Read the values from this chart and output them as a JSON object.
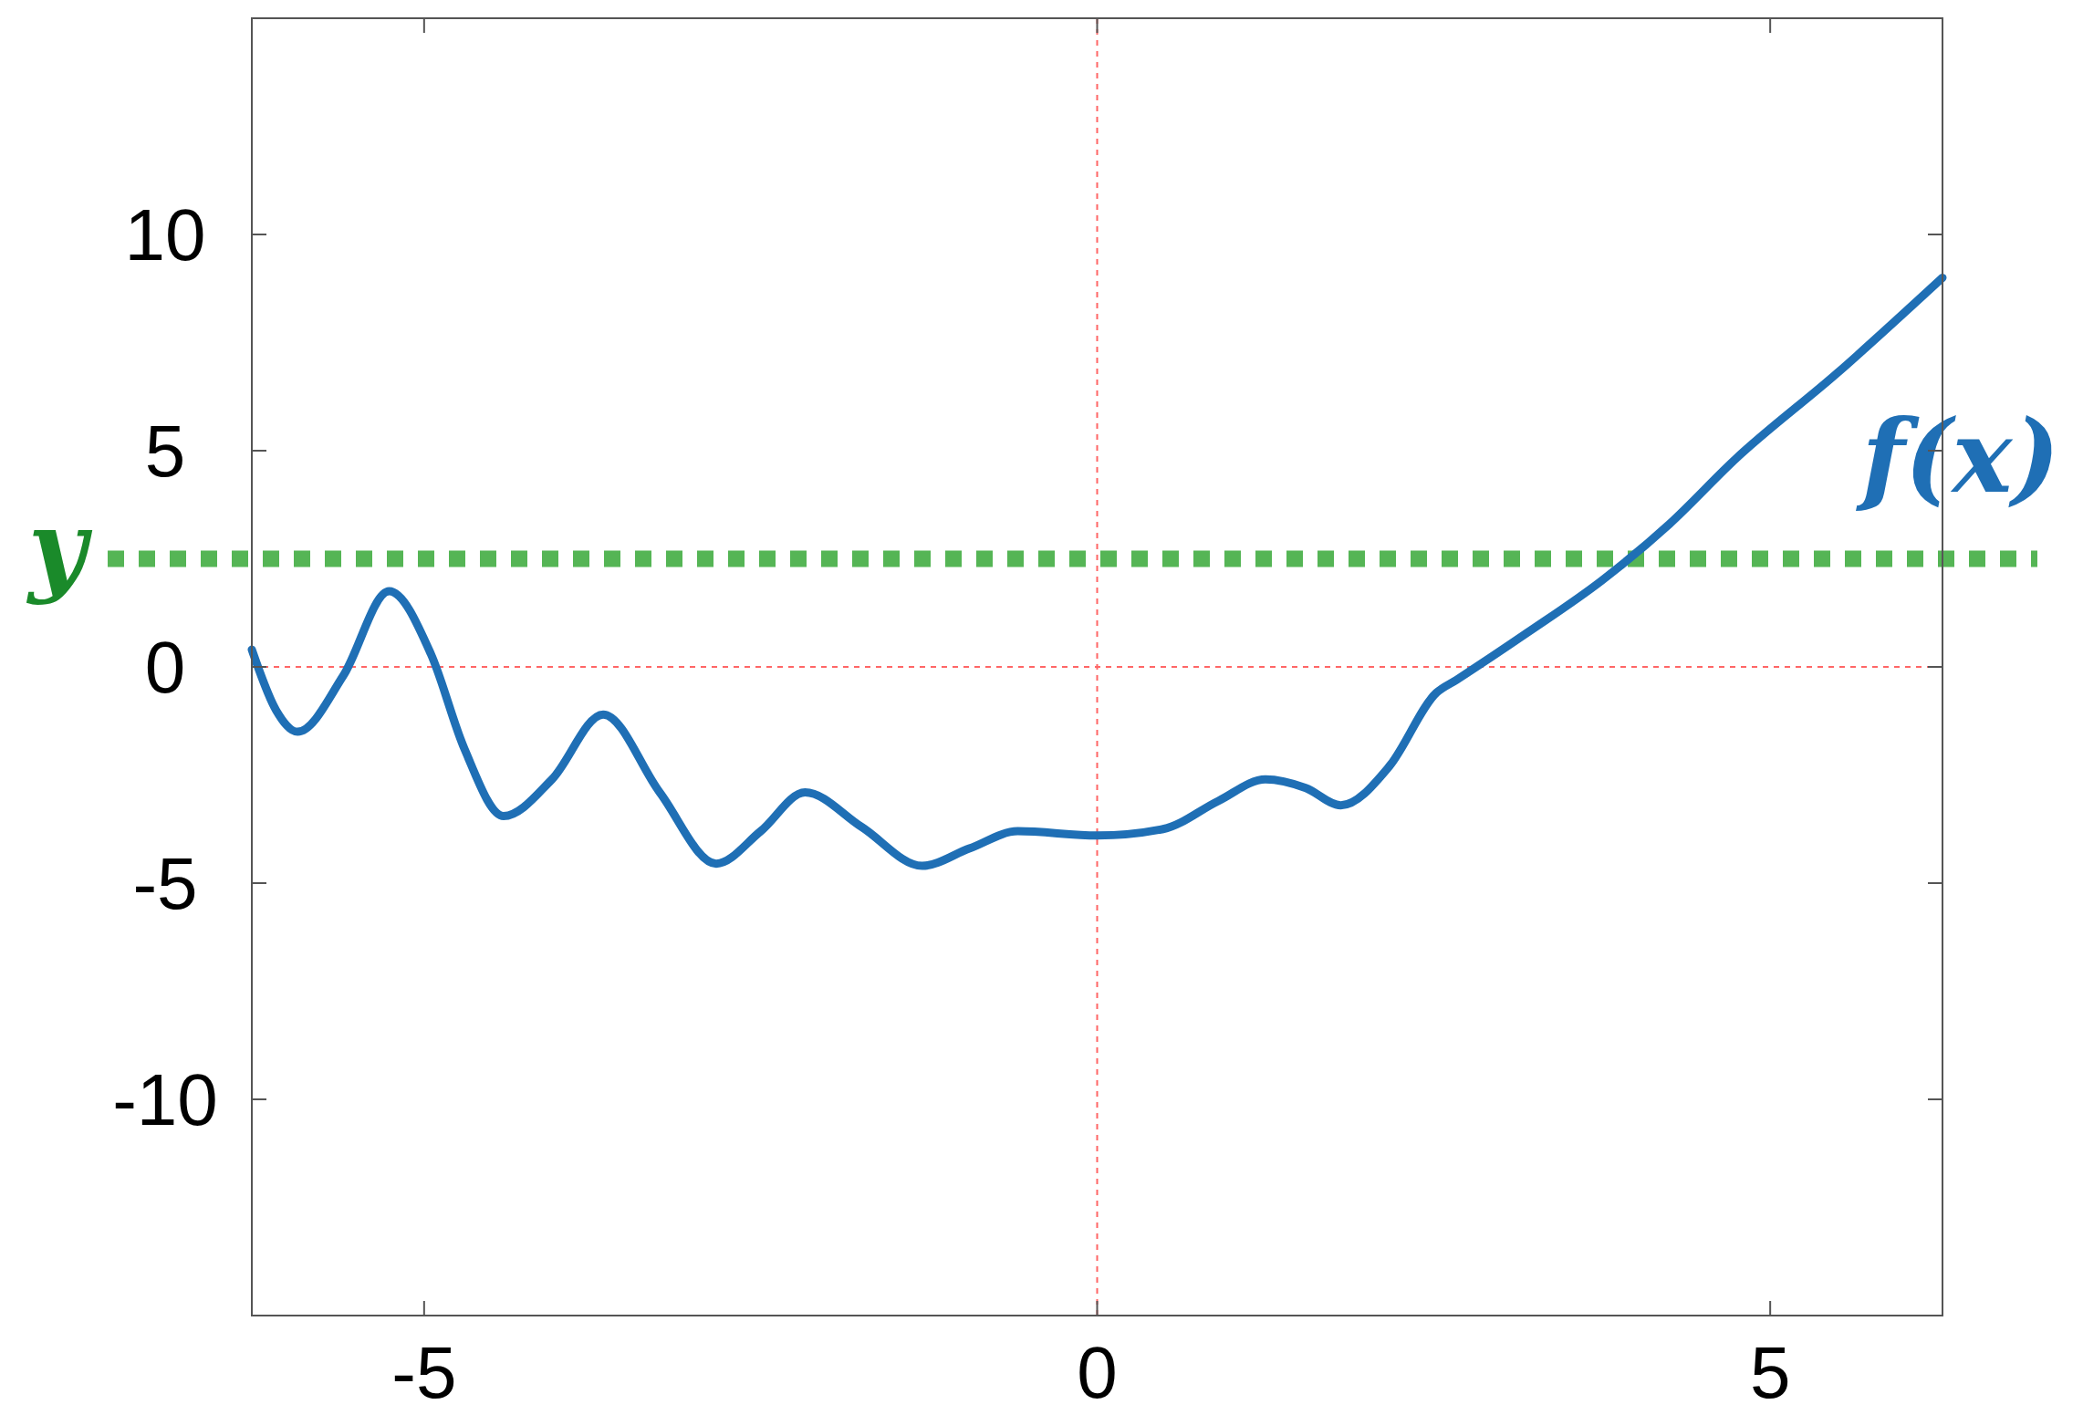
{
  "chart_data": {
    "type": "line",
    "xlim": [
      -6.28,
      6.28
    ],
    "ylim": [
      -15,
      15
    ],
    "xticks": [
      -5,
      0,
      5
    ],
    "yticks": [
      -10,
      -5,
      0,
      5,
      10
    ],
    "grid": false,
    "marker": "none",
    "line_style": "solid",
    "series": [
      {
        "name": "f(x)",
        "color": "#1f6fb5",
        "x": [
          -6.28,
          -6.1,
          -5.94,
          -5.6,
          -5.26,
          -4.95,
          -4.7,
          -4.41,
          -4.05,
          -3.67,
          -3.25,
          -2.83,
          -2.5,
          -2.17,
          -1.75,
          -1.3,
          -0.95,
          -0.59,
          0,
          0.49,
          0.9,
          1.25,
          1.55,
          1.81,
          2.17,
          2.52,
          2.67,
          3.2,
          3.75,
          4.25,
          4.74,
          5.5,
          6.28
        ],
        "values": [
          0.4,
          -1.0,
          -1.5,
          -0.2,
          1.75,
          0.3,
          -1.9,
          -3.45,
          -2.6,
          -1.1,
          -2.9,
          -4.55,
          -3.8,
          -2.9,
          -3.7,
          -4.6,
          -4.2,
          -3.8,
          -3.9,
          -3.75,
          -3.1,
          -2.6,
          -2.8,
          -3.2,
          -2.3,
          -0.6,
          -0.3,
          0.8,
          2.0,
          3.3,
          4.8,
          6.8,
          9.0
        ]
      }
    ],
    "ref_lines": [
      {
        "axis": "x",
        "value": 0,
        "color": "#ff6666",
        "line_style": "dotted"
      },
      {
        "axis": "y",
        "value": 0,
        "color": "#ff6666",
        "line_style": "dotted"
      },
      {
        "axis": "y",
        "value": 2.5,
        "label": "y",
        "color": "#55b555",
        "line_style": "dotted"
      }
    ]
  }
}
